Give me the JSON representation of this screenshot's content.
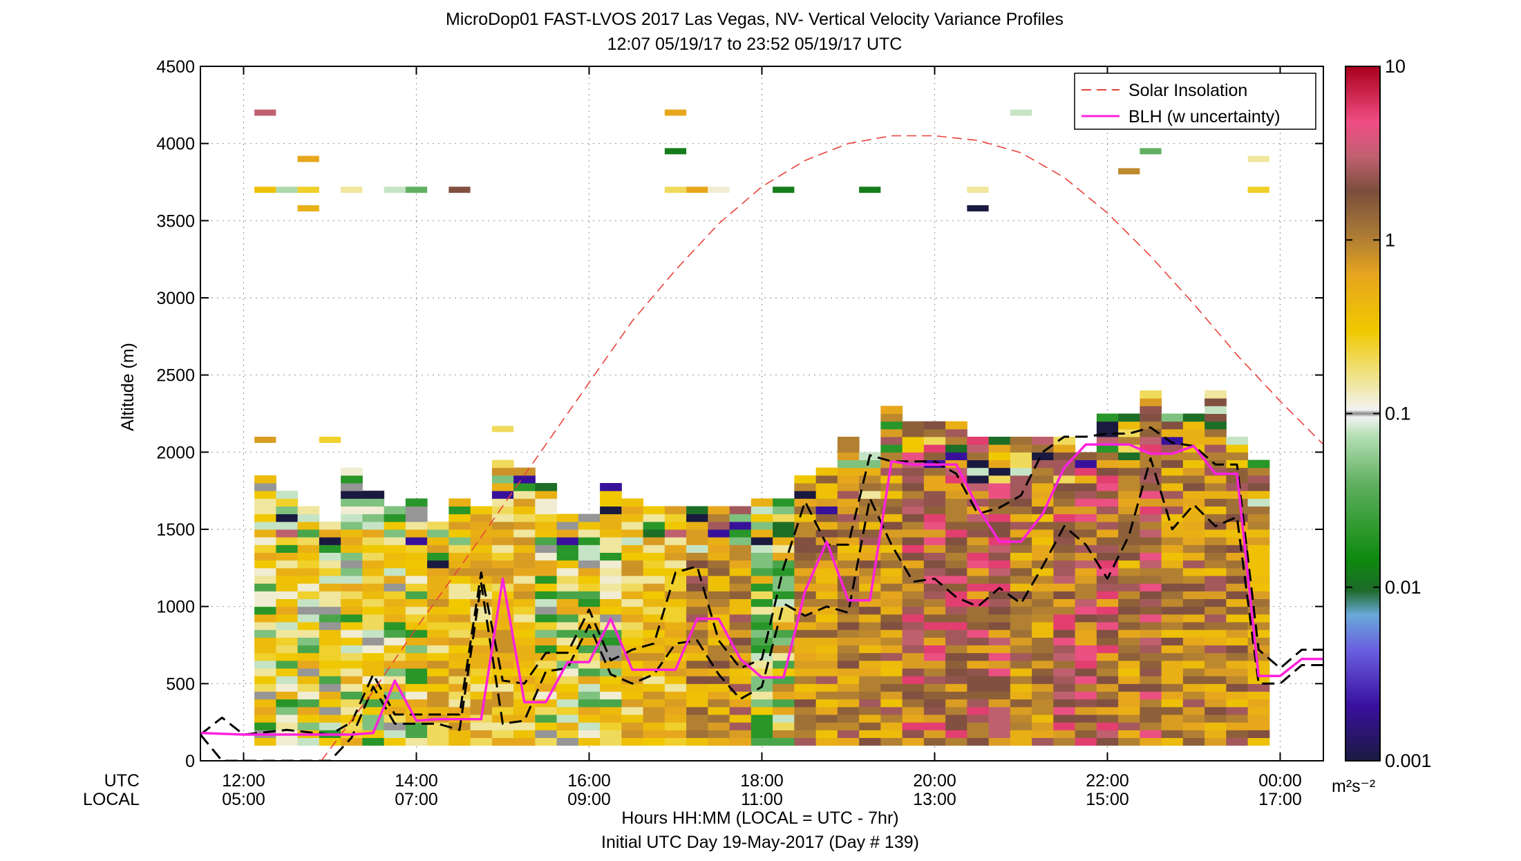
{
  "chart_data": {
    "type": "heatmap",
    "title": "MicroDop01 FAST-LVOS 2017 Las Vegas, NV- Vertical Velocity Variance Profiles",
    "subtitle": "12:07 05/19/17 to 23:52 05/19/17  UTC",
    "ylabel": "Altitude (m)",
    "xlabel": "Hours HH:MM  (LOCAL = UTC - 7hr)",
    "xlabel2": "Initial UTC Day 19-May-2017 (Day # 139)",
    "x_row_labels": [
      "UTC",
      "LOCAL"
    ],
    "xlim": [
      11.5,
      24.5
    ],
    "ylim": [
      0,
      4500
    ],
    "y_ticks": [
      0,
      500,
      1000,
      1500,
      2000,
      2500,
      3000,
      3500,
      4000,
      4500
    ],
    "x_ticks": [
      {
        "x": 12,
        "utc": "12:00",
        "local": "05:00"
      },
      {
        "x": 14,
        "utc": "14:00",
        "local": "07:00"
      },
      {
        "x": 16,
        "utc": "16:00",
        "local": "09:00"
      },
      {
        "x": 18,
        "utc": "18:00",
        "local": "11:00"
      },
      {
        "x": 20,
        "utc": "20:00",
        "local": "13:00"
      },
      {
        "x": 22,
        "utc": "22:00",
        "local": "15:00"
      },
      {
        "x": 24,
        "utc": "00:00",
        "local": "17:00"
      }
    ],
    "grid": true,
    "legend_placement": "top-right",
    "legend": [
      {
        "name": "Solar Insolation",
        "color": "#e8413a",
        "style": "dashed"
      },
      {
        "name": "BLH (w uncertainty)",
        "color": "#ff22dd",
        "style": "solid"
      }
    ],
    "colorbar": {
      "scale": "log",
      "range": [
        0.001,
        10
      ],
      "tick_values": [
        0.001,
        0.01,
        0.1,
        1,
        10
      ],
      "tick_labels": [
        "0.001",
        "0.01",
        "0.1",
        "1",
        "10"
      ],
      "units": "m²s⁻²"
    },
    "heatmap_columns": [
      {
        "x": 12.25,
        "top": 1850,
        "mix": "veg"
      },
      {
        "x": 12.5,
        "top": 1750,
        "mix": "veg"
      },
      {
        "x": 12.75,
        "top": 1650,
        "mix": "veg"
      },
      {
        "x": 13.0,
        "top": 1550,
        "mix": "veg"
      },
      {
        "x": 13.25,
        "top": 1900,
        "mix": "veg"
      },
      {
        "x": 13.5,
        "top": 1750,
        "mix": "veg"
      },
      {
        "x": 13.75,
        "top": 1650,
        "mix": "veg"
      },
      {
        "x": 14.0,
        "top": 1700,
        "mix": "veg"
      },
      {
        "x": 14.25,
        "top": 1550,
        "mix": "yel"
      },
      {
        "x": 14.5,
        "top": 1700,
        "mix": "yel"
      },
      {
        "x": 14.75,
        "top": 1650,
        "mix": "yel"
      },
      {
        "x": 15.0,
        "top": 1950,
        "mix": "yel"
      },
      {
        "x": 15.25,
        "top": 1900,
        "mix": "yel"
      },
      {
        "x": 15.5,
        "top": 1800,
        "mix": "veg"
      },
      {
        "x": 15.75,
        "top": 1600,
        "mix": "veg"
      },
      {
        "x": 16.0,
        "top": 1600,
        "mix": "veg"
      },
      {
        "x": 16.25,
        "top": 1800,
        "mix": "veg"
      },
      {
        "x": 16.5,
        "top": 1700,
        "mix": "yel"
      },
      {
        "x": 16.75,
        "top": 1650,
        "mix": "yel"
      },
      {
        "x": 17.0,
        "top": 1650,
        "mix": "yel"
      },
      {
        "x": 17.25,
        "top": 1650,
        "mix": "brn"
      },
      {
        "x": 17.5,
        "top": 1650,
        "mix": "brn"
      },
      {
        "x": 17.75,
        "top": 1650,
        "mix": "brn"
      },
      {
        "x": 18.0,
        "top": 1700,
        "mix": "grn"
      },
      {
        "x": 18.25,
        "top": 1700,
        "mix": "grn"
      },
      {
        "x": 18.5,
        "top": 1850,
        "mix": "brn"
      },
      {
        "x": 18.75,
        "top": 1900,
        "mix": "brn"
      },
      {
        "x": 19.0,
        "top": 2100,
        "mix": "brn"
      },
      {
        "x": 19.25,
        "top": 2000,
        "mix": "brn"
      },
      {
        "x": 19.5,
        "top": 2300,
        "mix": "brn"
      },
      {
        "x": 19.75,
        "top": 2200,
        "mix": "red"
      },
      {
        "x": 20.0,
        "top": 2200,
        "mix": "red"
      },
      {
        "x": 20.25,
        "top": 2200,
        "mix": "red"
      },
      {
        "x": 20.5,
        "top": 2100,
        "mix": "red"
      },
      {
        "x": 20.75,
        "top": 2100,
        "mix": "red"
      },
      {
        "x": 21.0,
        "top": 2100,
        "mix": "brn"
      },
      {
        "x": 21.25,
        "top": 2100,
        "mix": "brn"
      },
      {
        "x": 21.5,
        "top": 2100,
        "mix": "red"
      },
      {
        "x": 21.75,
        "top": 2000,
        "mix": "red"
      },
      {
        "x": 22.0,
        "top": 2250,
        "mix": "red"
      },
      {
        "x": 22.25,
        "top": 2250,
        "mix": "brn"
      },
      {
        "x": 22.5,
        "top": 2400,
        "mix": "red"
      },
      {
        "x": 22.75,
        "top": 2250,
        "mix": "brn"
      },
      {
        "x": 23.0,
        "top": 2250,
        "mix": "brn"
      },
      {
        "x": 23.25,
        "top": 2400,
        "mix": "brn"
      },
      {
        "x": 23.5,
        "top": 2100,
        "mix": "brn"
      },
      {
        "x": 23.75,
        "top": 1950,
        "mix": "brn"
      }
    ],
    "isolated_cells": [
      {
        "x": 12.25,
        "y": 4200,
        "value": 3.0
      },
      {
        "x": 12.25,
        "y": 3700,
        "value": 0.35
      },
      {
        "x": 12.75,
        "y": 3900,
        "value": 0.6
      },
      {
        "x": 12.75,
        "y": 3580,
        "value": 0.5
      },
      {
        "x": 12.5,
        "y": 3700,
        "value": 0.07
      },
      {
        "x": 12.75,
        "y": 3700,
        "value": 0.25
      },
      {
        "x": 13.25,
        "y": 3700,
        "value": 0.15
      },
      {
        "x": 13.75,
        "y": 3700,
        "value": 0.08
      },
      {
        "x": 14.0,
        "y": 3700,
        "value": 0.04
      },
      {
        "x": 14.5,
        "y": 3700,
        "value": 2.0
      },
      {
        "x": 17.0,
        "y": 4200,
        "value": 0.6
      },
      {
        "x": 17.0,
        "y": 3950,
        "value": 0.012
      },
      {
        "x": 17.0,
        "y": 3700,
        "value": 0.2
      },
      {
        "x": 17.25,
        "y": 3700,
        "value": 0.6
      },
      {
        "x": 17.5,
        "y": 3700,
        "value": 0.12
      },
      {
        "x": 18.25,
        "y": 3700,
        "value": 0.012
      },
      {
        "x": 19.25,
        "y": 3700,
        "value": 0.012
      },
      {
        "x": 20.5,
        "y": 3700,
        "value": 0.15
      },
      {
        "x": 20.5,
        "y": 3580,
        "value": 0.001
      },
      {
        "x": 21.0,
        "y": 4200,
        "value": 0.08
      },
      {
        "x": 22.5,
        "y": 3950,
        "value": 0.04
      },
      {
        "x": 22.25,
        "y": 3820,
        "value": 0.9
      },
      {
        "x": 23.75,
        "y": 3900,
        "value": 0.15
      },
      {
        "x": 23.75,
        "y": 3700,
        "value": 0.25
      },
      {
        "x": 12.25,
        "y": 2080,
        "value": 0.7
      },
      {
        "x": 13.0,
        "y": 2080,
        "value": 0.25
      },
      {
        "x": 15.0,
        "y": 2150,
        "value": 0.2
      }
    ],
    "series": [
      {
        "name": "Solar Insolation",
        "x": [
          12.9,
          13.5,
          14.0,
          14.5,
          15.0,
          15.5,
          16.0,
          16.5,
          17.0,
          17.5,
          18.0,
          18.5,
          19.0,
          19.5,
          20.0,
          20.5,
          21.0,
          21.5,
          22.0,
          22.5,
          23.0,
          23.5,
          24.0,
          24.5
        ],
        "y": [
          0,
          450,
          860,
          1250,
          1650,
          2050,
          2450,
          2850,
          3180,
          3480,
          3720,
          3890,
          4000,
          4050,
          4050,
          4020,
          3940,
          3780,
          3550,
          3270,
          2960,
          2630,
          2330,
          2050
        ]
      },
      {
        "name": "BLH (w uncertainty)",
        "x": [
          11.5,
          12.0,
          12.5,
          13.0,
          13.25,
          13.5,
          13.75,
          14.0,
          14.25,
          14.5,
          14.75,
          15.0,
          15.25,
          15.5,
          15.75,
          16.0,
          16.25,
          16.5,
          16.75,
          17.0,
          17.25,
          17.5,
          17.75,
          18.0,
          18.25,
          18.5,
          18.75,
          19.0,
          19.25,
          19.5,
          19.75,
          20.0,
          20.25,
          20.5,
          20.75,
          21.0,
          21.25,
          21.5,
          21.75,
          22.0,
          22.25,
          22.5,
          22.75,
          23.0,
          23.25,
          23.5,
          23.75,
          24.0,
          24.25,
          24.5
        ],
        "y": [
          180,
          170,
          170,
          170,
          170,
          180,
          520,
          260,
          270,
          270,
          270,
          1180,
          380,
          380,
          640,
          640,
          920,
          590,
          590,
          590,
          920,
          920,
          660,
          540,
          540,
          1100,
          1420,
          1040,
          1040,
          1940,
          1920,
          1920,
          1920,
          1640,
          1420,
          1420,
          1600,
          1900,
          2050,
          2050,
          2050,
          1990,
          1990,
          2040,
          1860,
          1860,
          550,
          550,
          660,
          660
        ]
      },
      {
        "name": "BLH upper",
        "x": [
          11.5,
          11.75,
          12.0,
          12.5,
          13.0,
          13.25,
          13.5,
          13.75,
          14.0,
          14.25,
          14.5,
          14.75,
          15.0,
          15.25,
          15.5,
          15.75,
          16.0,
          16.25,
          16.5,
          16.75,
          17.0,
          17.25,
          17.5,
          17.75,
          18.0,
          18.25,
          18.5,
          18.75,
          19.0,
          19.25,
          19.5,
          19.75,
          20.0,
          20.25,
          20.5,
          20.75,
          21.0,
          21.25,
          21.5,
          21.75,
          22.0,
          22.25,
          22.5,
          22.75,
          23.0,
          23.25,
          23.5,
          23.75,
          24.0,
          24.25,
          24.5
        ],
        "y": [
          170,
          280,
          170,
          200,
          170,
          250,
          560,
          300,
          300,
          300,
          300,
          1220,
          520,
          500,
          700,
          700,
          980,
          650,
          720,
          760,
          1220,
          1260,
          780,
          600,
          660,
          1250,
          1680,
          1400,
          1400,
          1980,
          1940,
          1940,
          1940,
          1860,
          1600,
          1640,
          1720,
          2000,
          2100,
          2100,
          2120,
          2120,
          2160,
          2060,
          2040,
          1920,
          1920,
          720,
          600,
          720,
          720
        ]
      },
      {
        "name": "BLH lower",
        "x": [
          11.5,
          11.75,
          12.0,
          12.5,
          13.0,
          13.25,
          13.5,
          13.75,
          14.0,
          14.25,
          14.5,
          14.75,
          15.0,
          15.25,
          15.5,
          15.75,
          16.0,
          16.25,
          16.5,
          16.75,
          17.0,
          17.25,
          17.5,
          17.75,
          18.0,
          18.25,
          18.5,
          18.75,
          19.0,
          19.25,
          19.5,
          19.75,
          20.0,
          20.25,
          20.5,
          20.75,
          21.0,
          21.25,
          21.5,
          21.75,
          22.0,
          22.25,
          22.5,
          22.75,
          23.0,
          23.25,
          23.5,
          23.75,
          24.0,
          24.25,
          24.5
        ],
        "y": [
          170,
          0,
          0,
          0,
          0,
          150,
          480,
          240,
          240,
          240,
          200,
          1150,
          240,
          260,
          580,
          600,
          880,
          560,
          500,
          560,
          760,
          780,
          560,
          400,
          480,
          1020,
          940,
          1000,
          960,
          1700,
          1400,
          1160,
          1180,
          1060,
          1000,
          1120,
          1020,
          1260,
          1520,
          1400,
          1180,
          1460,
          1960,
          1500,
          1660,
          1520,
          1580,
          500,
          500,
          620,
          620
        ]
      }
    ]
  }
}
